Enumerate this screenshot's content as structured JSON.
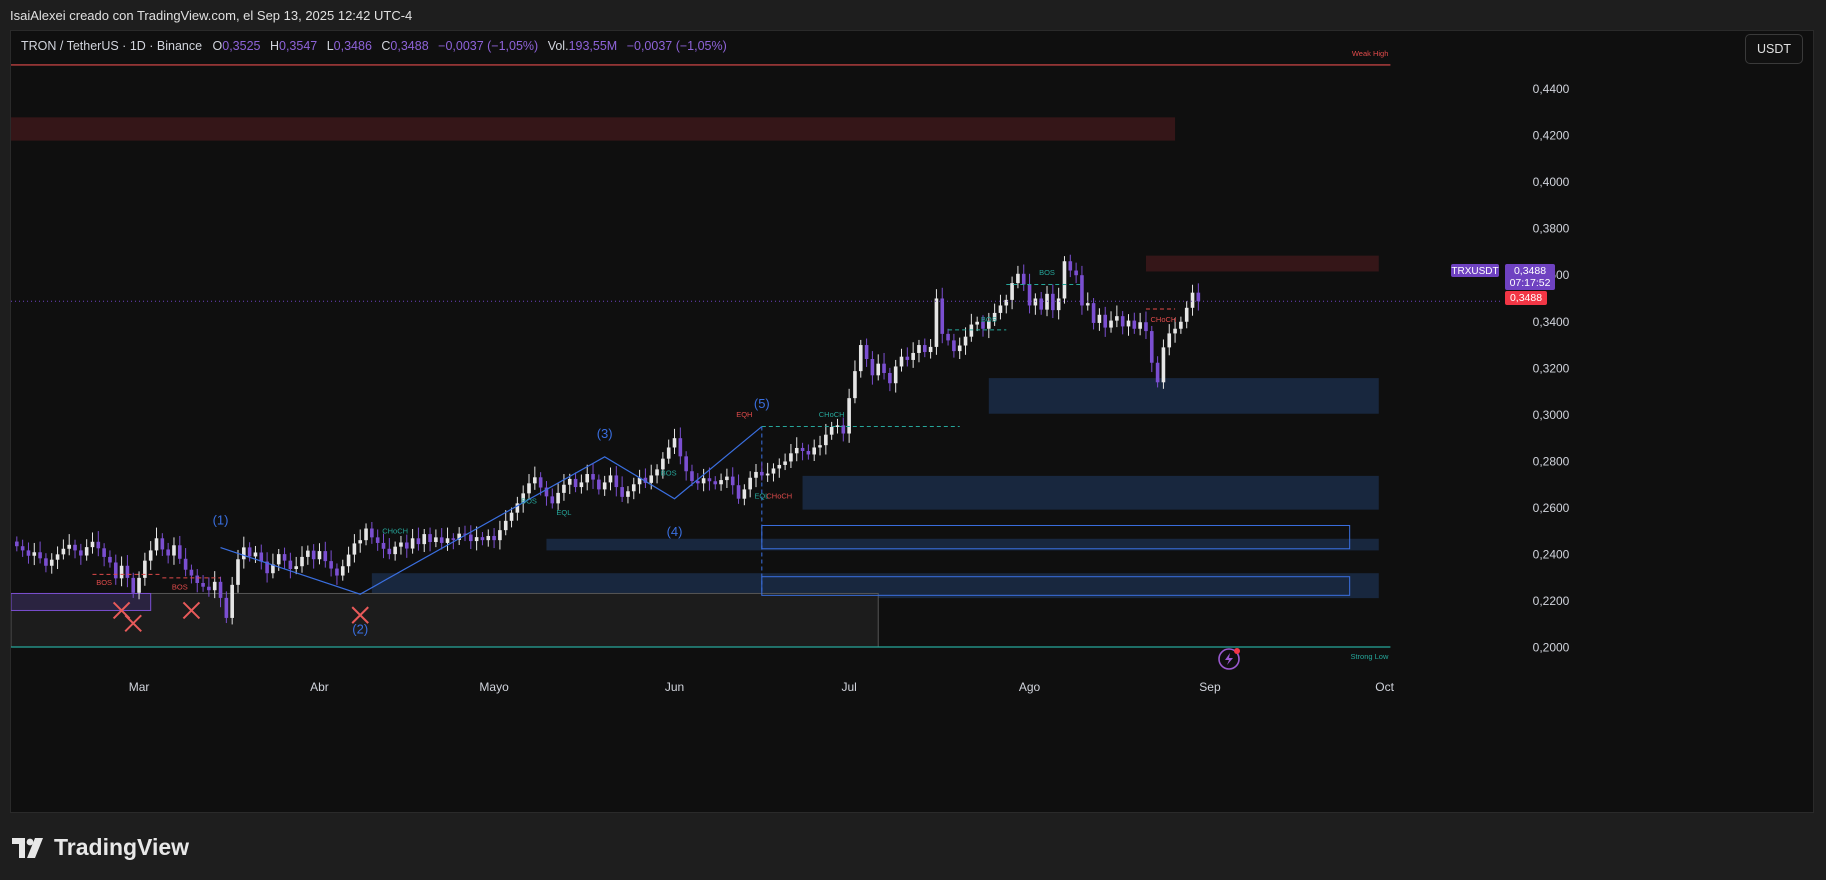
{
  "caption": "IsaiAlexei creado con TradingView.com, el Sep 13, 2025 12:42 UTC-4",
  "header": {
    "symbol": "TRON / TetherUS · 1D · Binance",
    "o_label": "O",
    "o_value": "0,3525",
    "h_label": "H",
    "h_value": "0,3547",
    "l_label": "L",
    "l_value": "0,3486",
    "c_label": "C",
    "c_value": "0,3488",
    "change": "−0,0037 (−1,05%)",
    "vol_label": "Vol.",
    "vol_value": "193,55M",
    "vol_change": "−0,0037 (−1,05%)"
  },
  "currency_button": "USDT",
  "brand": "TradingView",
  "colors": {
    "up": "#e6e6e6",
    "down": "#7b4fd1",
    "demand_zone": "#1a2a44",
    "supply_zone": "#3a1719",
    "wave": "#3a6fe0",
    "bos": "#26a69a",
    "choch_red": "#e04b4b",
    "price_tag": "#6f42c1"
  },
  "chart_data": {
    "type": "candlestick",
    "symbol": "TRXUSDT",
    "last_price": 0.3488,
    "last_price_label": "0,3488",
    "countdown": "07:17:52",
    "ylim": [
      0.19,
      0.452
    ],
    "y_ticks": [
      "0,4400",
      "0,4200",
      "0,4000",
      "0,3800",
      "0,3600",
      "0,3400",
      "0,3200",
      "0,3000",
      "0,2800",
      "0,2600",
      "0,2400",
      "0,2200",
      "0,2000"
    ],
    "y_tick_values": [
      0.44,
      0.42,
      0.4,
      0.38,
      0.36,
      0.34,
      0.32,
      0.3,
      0.28,
      0.26,
      0.24,
      0.22,
      0.2
    ],
    "x_start": "2025-02-07",
    "x_end": "2025-10-21",
    "x_ticks": [
      {
        "label": "Mar",
        "date": "2025-03-01"
      },
      {
        "label": "Abr",
        "date": "2025-04-01"
      },
      {
        "label": "Mayo",
        "date": "2025-05-01"
      },
      {
        "label": "Jun",
        "date": "2025-06-01"
      },
      {
        "label": "Jul",
        "date": "2025-07-01"
      },
      {
        "label": "Ago",
        "date": "2025-08-01"
      },
      {
        "label": "Sep",
        "date": "2025-09-01"
      },
      {
        "label": "Oct",
        "date": "2025-10-01"
      }
    ],
    "closes": [
      0.2436,
      0.2418,
      0.2395,
      0.241,
      0.2384,
      0.2352,
      0.2378,
      0.2401,
      0.2425,
      0.2442,
      0.2418,
      0.2396,
      0.2432,
      0.2455,
      0.2427,
      0.239,
      0.2366,
      0.2298,
      0.2352,
      0.23,
      0.2236,
      0.23,
      0.2374,
      0.2418,
      0.247,
      0.2422,
      0.2396,
      0.244,
      0.2382,
      0.2335,
      0.231,
      0.2278,
      0.2262,
      0.2247,
      0.2283,
      0.2214,
      0.2128,
      0.227,
      0.238,
      0.2431,
      0.2392,
      0.2409,
      0.237,
      0.232,
      0.2358,
      0.2402,
      0.2374,
      0.2338,
      0.235,
      0.239,
      0.2417,
      0.238,
      0.2415,
      0.2372,
      0.234,
      0.231,
      0.235,
      0.24,
      0.2448,
      0.2462,
      0.2512,
      0.2474,
      0.245,
      0.2425,
      0.2402,
      0.2434,
      0.2452,
      0.2426,
      0.247,
      0.2445,
      0.2488,
      0.2454,
      0.2474,
      0.245,
      0.247,
      0.2463,
      0.249,
      0.2486,
      0.2458,
      0.2475,
      0.2462,
      0.248,
      0.2462,
      0.2505,
      0.2545,
      0.258,
      0.262,
      0.2663,
      0.2706,
      0.2732,
      0.2688,
      0.265,
      0.262,
      0.2665,
      0.27,
      0.2725,
      0.269,
      0.271,
      0.2746,
      0.2722,
      0.268,
      0.271,
      0.274,
      0.269,
      0.2648,
      0.2672,
      0.2702,
      0.273,
      0.2708,
      0.274,
      0.2766,
      0.2812,
      0.286,
      0.29,
      0.2822,
      0.2758,
      0.2716,
      0.2706,
      0.2728,
      0.2715,
      0.2702,
      0.272,
      0.2735,
      0.2698,
      0.264,
      0.268,
      0.273,
      0.2755,
      0.274,
      0.2748,
      0.277,
      0.2785,
      0.28,
      0.2835,
      0.2858,
      0.2845,
      0.283,
      0.286,
      0.287,
      0.2915,
      0.2948,
      0.2955,
      0.292,
      0.3072,
      0.3188,
      0.33,
      0.324,
      0.317,
      0.322,
      0.318,
      0.3136,
      0.3208,
      0.325,
      0.3236,
      0.3266,
      0.33,
      0.327,
      0.3292,
      0.35,
      0.3348,
      0.332,
      0.3274,
      0.3298,
      0.3336,
      0.3388,
      0.34,
      0.337,
      0.3404,
      0.3438,
      0.347,
      0.3494,
      0.3566,
      0.3606,
      0.356,
      0.347,
      0.35,
      0.3452,
      0.352,
      0.345,
      0.35,
      0.366,
      0.362,
      0.36,
      0.347,
      0.348,
      0.3395,
      0.343,
      0.3375,
      0.3405,
      0.3424,
      0.338,
      0.3405,
      0.337,
      0.3398,
      0.336,
      0.3224,
      0.314,
      0.329,
      0.335,
      0.337,
      0.34,
      0.346,
      0.3525,
      0.3488
    ],
    "markers": [
      {
        "type": "wave",
        "label": "(1)",
        "color": "#3a6fe0"
      },
      {
        "type": "wave",
        "label": "(2)",
        "color": "#3a6fe0"
      },
      {
        "type": "wave",
        "label": "(3)",
        "color": "#3a6fe0"
      },
      {
        "type": "wave",
        "label": "(4)",
        "color": "#3a6fe0"
      },
      {
        "type": "wave",
        "label": "(5)",
        "color": "#3a6fe0"
      }
    ],
    "annotations": [
      "BOS",
      "BOS",
      "CHoCH",
      "BOS",
      "EQL",
      "BOS",
      "EQH",
      "CHoCH",
      "EQL",
      "CHoCH",
      "BOS",
      "BOS",
      "CHoCH",
      "Weak High",
      "Strong Low"
    ],
    "zones": [
      {
        "kind": "supply",
        "from": "2025-02-07",
        "to": "2025-08-26",
        "top": 0.4278,
        "bottom": 0.4178
      },
      {
        "kind": "supply",
        "from": "2025-08-21",
        "to": "2025-09-30",
        "top": 0.3684,
        "bottom": 0.3616
      },
      {
        "kind": "demand",
        "from": "2025-07-25",
        "to": "2025-09-30",
        "top": 0.3158,
        "bottom": 0.3005
      },
      {
        "kind": "demand",
        "from": "2025-06-23",
        "to": "2025-09-30",
        "top": 0.2738,
        "bottom": 0.2593
      },
      {
        "kind": "demand",
        "from": "2025-05-10",
        "to": "2025-09-30",
        "top": 0.2468,
        "bottom": 0.2418
      },
      {
        "kind": "demand",
        "from": "2025-04-10",
        "to": "2025-09-30",
        "top": 0.232,
        "bottom": 0.2213
      }
    ],
    "levels": [
      {
        "label": "Weak High",
        "value": 0.4503
      },
      {
        "label": "Strong Low",
        "value": 0.2003
      }
    ]
  }
}
